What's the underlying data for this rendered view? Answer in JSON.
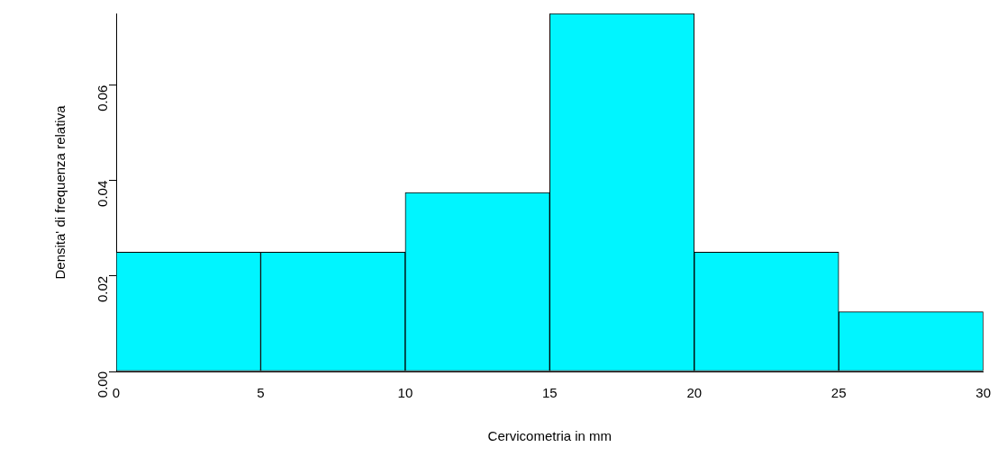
{
  "chart_data": {
    "type": "histogram",
    "xlabel": "Cervicometria in mm",
    "ylabel": "Densita' di frequenza relativa",
    "bins": [
      0,
      5,
      10,
      15,
      20,
      25,
      30
    ],
    "values": [
      0.025,
      0.025,
      0.0375,
      0.075,
      0.025,
      0.0125
    ],
    "color": "#00f5ff",
    "xlim": [
      0,
      30
    ],
    "xticks": [
      0,
      5,
      10,
      15,
      20,
      25,
      30
    ],
    "ylim": [
      0,
      0.075
    ],
    "yticks": [
      {
        "value": 0,
        "label": "0.00"
      },
      0.02,
      0.04,
      0.06
    ],
    "grid": false,
    "legend": false
  }
}
